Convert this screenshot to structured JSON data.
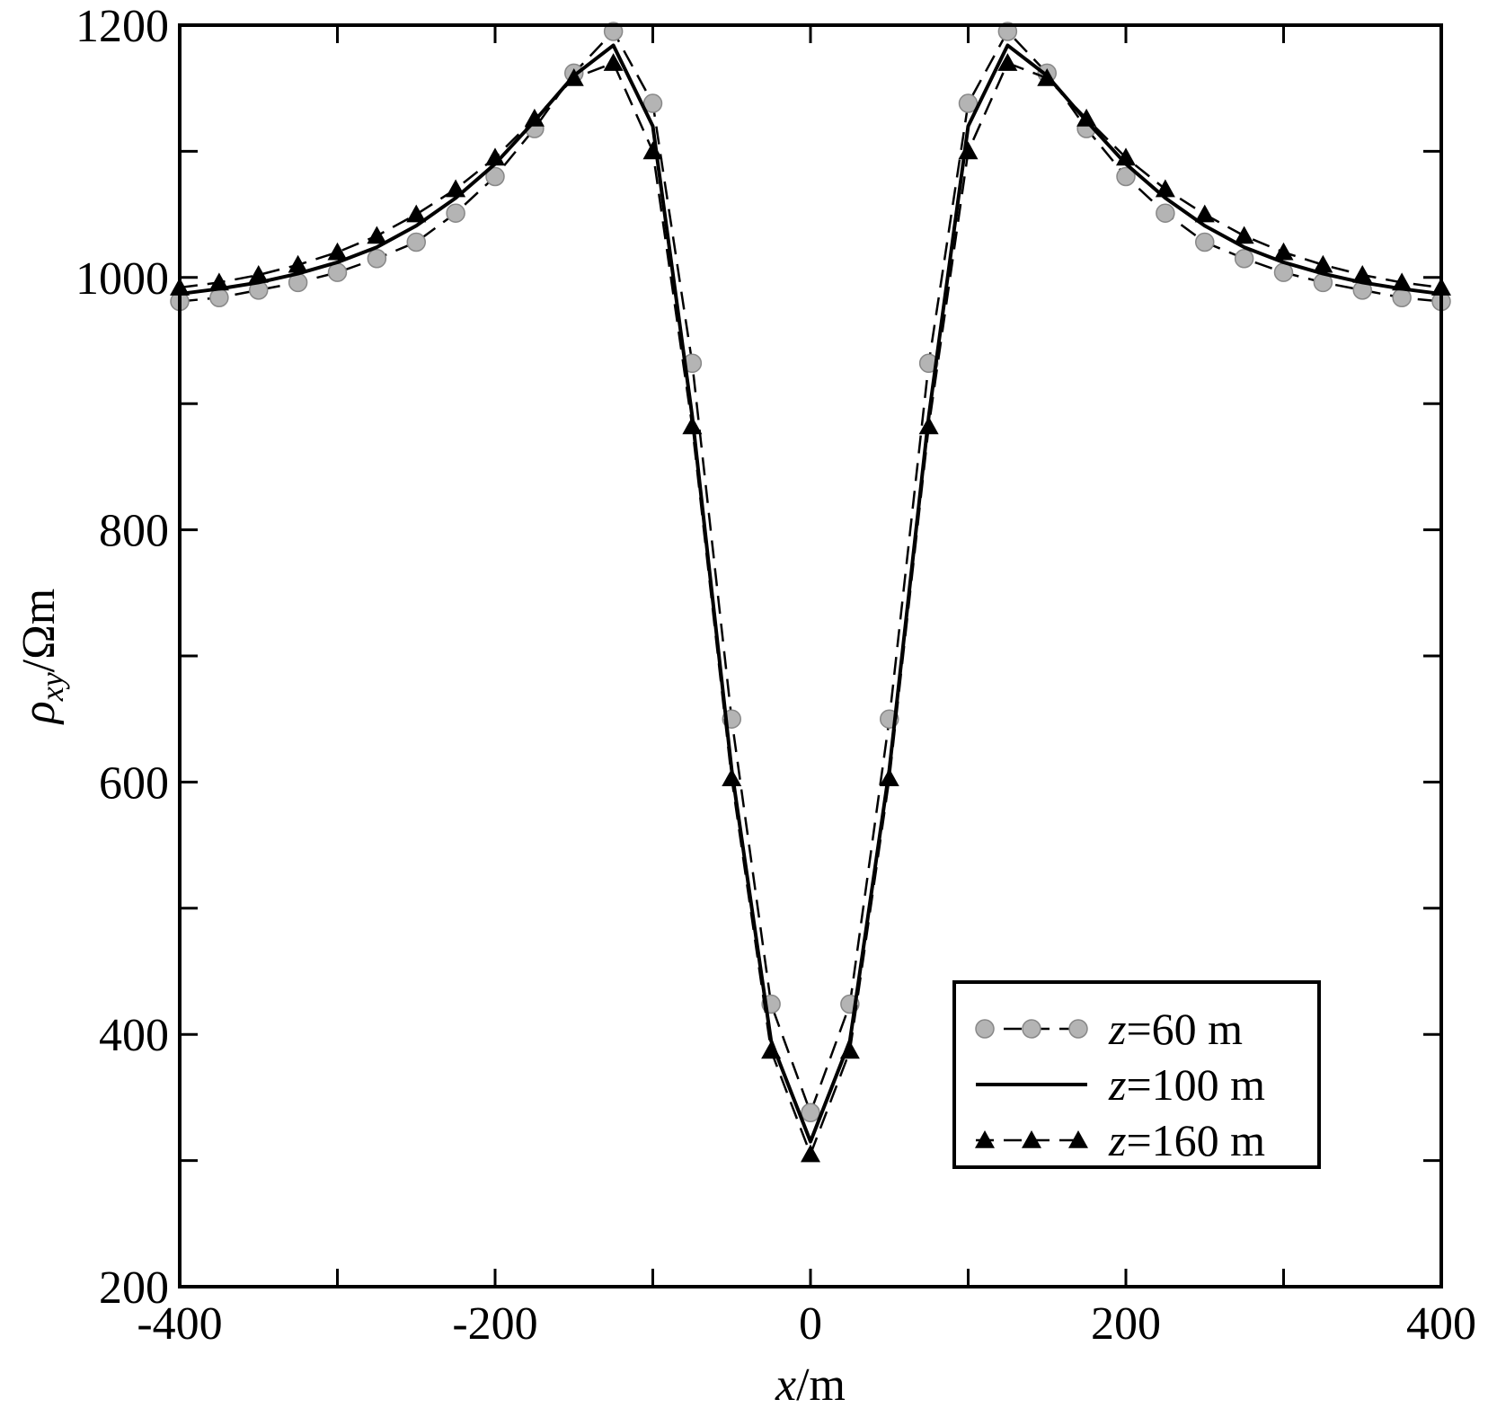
{
  "chart_data": {
    "type": "line",
    "xlabel": {
      "italic": "x",
      "rest": "/m"
    },
    "ylabel": {
      "rho": "ρ",
      "sub": "xy",
      "rest": "/Ωm"
    },
    "xlim": [
      -400,
      400
    ],
    "ylim": [
      200,
      1200
    ],
    "xticks": [
      -400,
      -200,
      0,
      200,
      400
    ],
    "xticks_minor": [
      -300,
      -100,
      100,
      300
    ],
    "yticks": [
      200,
      400,
      600,
      800,
      1000,
      1200
    ],
    "yticks_minor": [
      300,
      500,
      700,
      900,
      1100
    ],
    "grid": false,
    "legend_position": "bottom-right",
    "series": [
      {
        "name": "z=60 m",
        "name_italic": "z",
        "name_rest": "=60 m",
        "line_style": "dashed",
        "marker": "circle",
        "marker_color": "#b4b4b4",
        "x": [
          -400,
          -375,
          -350,
          -325,
          -300,
          -275,
          -250,
          -225,
          -200,
          -175,
          -150,
          -125,
          -100,
          -75,
          -50,
          -25,
          0,
          25,
          50,
          75,
          100,
          125,
          150,
          175,
          200,
          225,
          250,
          275,
          300,
          325,
          350,
          375,
          400
        ],
        "y": [
          981,
          984,
          990,
          996,
          1004,
          1015,
          1028,
          1051,
          1080,
          1118,
          1162,
          1195,
          1138,
          932,
          650,
          424,
          338,
          424,
          650,
          932,
          1138,
          1195,
          1162,
          1118,
          1080,
          1051,
          1028,
          1015,
          1004,
          996,
          990,
          984,
          981
        ]
      },
      {
        "name": "z=100 m",
        "name_italic": "z",
        "name_rest": "=100 m",
        "line_style": "solid",
        "marker": "none",
        "x": [
          -400,
          -375,
          -350,
          -325,
          -300,
          -275,
          -250,
          -225,
          -200,
          -175,
          -150,
          -125,
          -100,
          -75,
          -50,
          -25,
          0,
          25,
          50,
          75,
          100,
          125,
          150,
          175,
          200,
          225,
          250,
          275,
          300,
          325,
          350,
          375,
          400
        ],
        "y": [
          987,
          991,
          996,
          1003,
          1012,
          1024,
          1041,
          1063,
          1090,
          1124,
          1160,
          1184,
          1120,
          890,
          610,
          395,
          315,
          395,
          610,
          890,
          1120,
          1184,
          1160,
          1124,
          1090,
          1063,
          1041,
          1024,
          1012,
          1003,
          996,
          991,
          987
        ]
      },
      {
        "name": "z=160 m",
        "name_italic": "z",
        "name_rest": "=160 m",
        "line_style": "dashed",
        "marker": "triangle",
        "marker_color": "#000000",
        "x": [
          -400,
          -375,
          -350,
          -325,
          -300,
          -275,
          -250,
          -225,
          -200,
          -175,
          -150,
          -125,
          -100,
          -75,
          -50,
          -25,
          0,
          25,
          50,
          75,
          100,
          125,
          150,
          175,
          200,
          225,
          250,
          275,
          300,
          325,
          350,
          375,
          400
        ],
        "y": [
          992,
          996,
          1002,
          1010,
          1020,
          1033,
          1050,
          1070,
          1095,
          1126,
          1158,
          1170,
          1100,
          882,
          603,
          387,
          305,
          387,
          603,
          882,
          1100,
          1170,
          1158,
          1126,
          1095,
          1070,
          1050,
          1033,
          1020,
          1010,
          1002,
          996,
          992
        ]
      }
    ]
  }
}
